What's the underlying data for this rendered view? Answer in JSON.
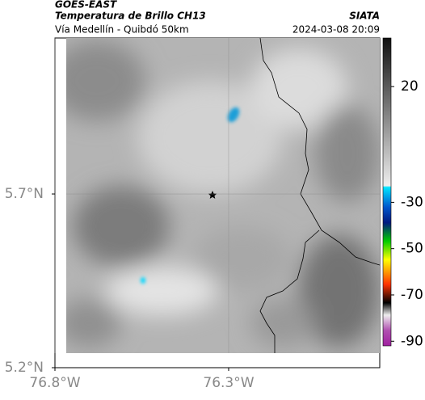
{
  "header": {
    "source": "GOES-EAST",
    "title": "Temperatura de Brillo CH13",
    "credit": "SIATA",
    "subtitle": "Vía Medellín - Quibdó 50km",
    "timestamp": "2024-03-08 20:09"
  },
  "map": {
    "xlim": [
      -76.8,
      -75.865
    ],
    "ylim": [
      5.2,
      6.149
    ],
    "xticks": [
      {
        "value": -76.8,
        "label": "76.8°W"
      },
      {
        "value": -76.3,
        "label": "76.3°W"
      }
    ],
    "yticks": [
      {
        "value": 5.2,
        "label": "5.2°N"
      },
      {
        "value": 5.7,
        "label": "5.7°N"
      }
    ],
    "grid": true
  },
  "colorbar": {
    "lim": [
      41,
      -92
    ],
    "ticks": [
      20,
      -30,
      -50,
      -70,
      -90
    ]
  }
}
